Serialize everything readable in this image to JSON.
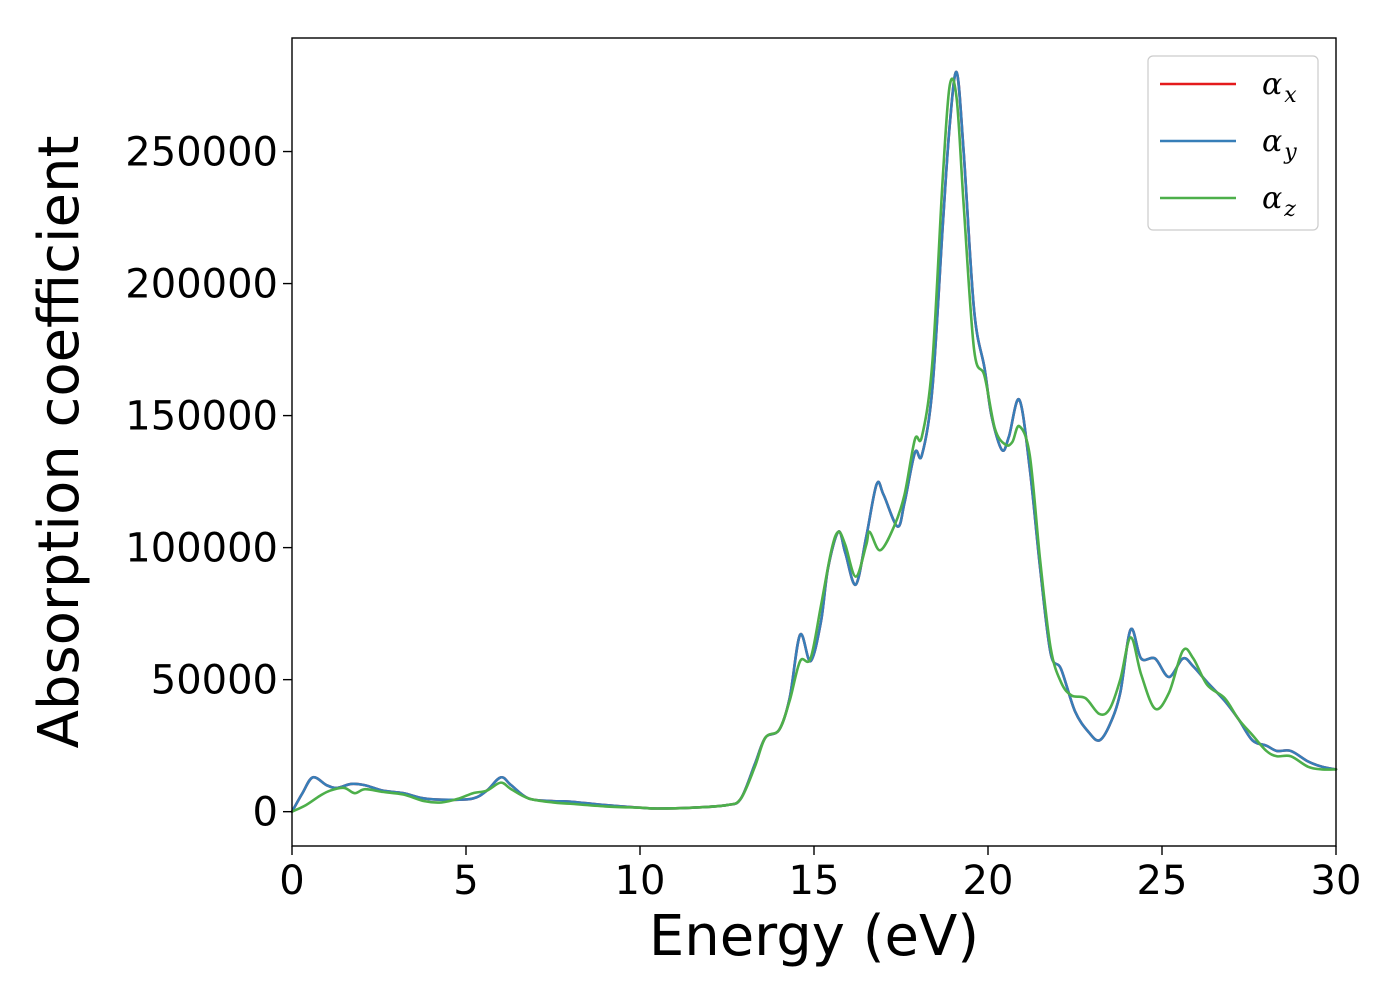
{
  "chart_data": {
    "type": "line",
    "xlabel": "Energy (eV)",
    "ylabel": "Absorption coefficient",
    "xlim": [
      0,
      30
    ],
    "ylim": [
      -13000,
      293000
    ],
    "xticks": [
      0,
      5,
      10,
      15,
      20,
      25,
      30
    ],
    "xtick_labels": [
      "0",
      "5",
      "10",
      "15",
      "20",
      "25",
      "30"
    ],
    "yticks": [
      0,
      50000,
      100000,
      150000,
      200000,
      250000
    ],
    "ytick_labels": [
      "0",
      "50000",
      "100000",
      "150000",
      "200000",
      "250000"
    ],
    "grid": false,
    "legend_position": "top-right",
    "series": [
      {
        "name": "α",
        "subscript": "x",
        "color": "#e41a1c",
        "points": [
          [
            0,
            0
          ],
          [
            0.3,
            7000
          ],
          [
            0.6,
            13000
          ],
          [
            1.0,
            10000
          ],
          [
            1.3,
            9000
          ],
          [
            1.7,
            10500
          ],
          [
            2.1,
            10000
          ],
          [
            2.6,
            8000
          ],
          [
            3.2,
            7000
          ],
          [
            3.8,
            5000
          ],
          [
            4.5,
            4500
          ],
          [
            5.2,
            5000
          ],
          [
            5.6,
            8000
          ],
          [
            6.0,
            13000
          ],
          [
            6.3,
            10000
          ],
          [
            6.8,
            5000
          ],
          [
            7.5,
            4000
          ],
          [
            8.0,
            3800
          ],
          [
            9.0,
            2500
          ],
          [
            10.0,
            1500
          ],
          [
            10.5,
            1200
          ],
          [
            11.5,
            1500
          ],
          [
            12.5,
            2500
          ],
          [
            12.9,
            5000
          ],
          [
            13.3,
            18000
          ],
          [
            13.6,
            28000
          ],
          [
            14.0,
            31000
          ],
          [
            14.3,
            43000
          ],
          [
            14.6,
            67000
          ],
          [
            14.9,
            57000
          ],
          [
            15.2,
            72000
          ],
          [
            15.4,
            92000
          ],
          [
            15.7,
            106000
          ],
          [
            15.9,
            98000
          ],
          [
            16.2,
            86000
          ],
          [
            16.5,
            104000
          ],
          [
            16.8,
            124000
          ],
          [
            17.0,
            120000
          ],
          [
            17.4,
            108000
          ],
          [
            17.6,
            117000
          ],
          [
            17.9,
            136000
          ],
          [
            18.1,
            135000
          ],
          [
            18.4,
            160000
          ],
          [
            18.7,
            222000
          ],
          [
            18.9,
            260000
          ],
          [
            19.1,
            280000
          ],
          [
            19.3,
            250000
          ],
          [
            19.6,
            190000
          ],
          [
            19.9,
            168000
          ],
          [
            20.1,
            150000
          ],
          [
            20.4,
            137000
          ],
          [
            20.6,
            142000
          ],
          [
            20.9,
            156000
          ],
          [
            21.2,
            130000
          ],
          [
            21.5,
            92000
          ],
          [
            21.8,
            60000
          ],
          [
            22.1,
            54000
          ],
          [
            22.5,
            38000
          ],
          [
            22.9,
            30000
          ],
          [
            23.2,
            27000
          ],
          [
            23.5,
            33000
          ],
          [
            23.8,
            45000
          ],
          [
            24.1,
            69000
          ],
          [
            24.4,
            58000
          ],
          [
            24.8,
            58000
          ],
          [
            25.2,
            51000
          ],
          [
            25.6,
            58000
          ],
          [
            25.9,
            55000
          ],
          [
            26.3,
            49000
          ],
          [
            26.8,
            42000
          ],
          [
            27.2,
            35000
          ],
          [
            27.6,
            27000
          ],
          [
            28.0,
            25000
          ],
          [
            28.3,
            23000
          ],
          [
            28.7,
            23000
          ],
          [
            29.2,
            19000
          ],
          [
            29.6,
            17000
          ],
          [
            30.0,
            16000
          ]
        ]
      },
      {
        "name": "α",
        "subscript": "y",
        "color": "#377eb8",
        "points": [
          [
            0,
            0
          ],
          [
            0.3,
            7000
          ],
          [
            0.6,
            13000
          ],
          [
            1.0,
            10000
          ],
          [
            1.3,
            9000
          ],
          [
            1.7,
            10500
          ],
          [
            2.1,
            10000
          ],
          [
            2.6,
            8000
          ],
          [
            3.2,
            7000
          ],
          [
            3.8,
            5000
          ],
          [
            4.5,
            4500
          ],
          [
            5.2,
            5000
          ],
          [
            5.6,
            8000
          ],
          [
            6.0,
            13000
          ],
          [
            6.3,
            10000
          ],
          [
            6.8,
            5000
          ],
          [
            7.5,
            4000
          ],
          [
            8.0,
            3800
          ],
          [
            9.0,
            2500
          ],
          [
            10.0,
            1500
          ],
          [
            10.5,
            1200
          ],
          [
            11.5,
            1500
          ],
          [
            12.5,
            2500
          ],
          [
            12.9,
            5000
          ],
          [
            13.3,
            18000
          ],
          [
            13.6,
            28000
          ],
          [
            14.0,
            31000
          ],
          [
            14.3,
            43000
          ],
          [
            14.6,
            67000
          ],
          [
            14.9,
            57000
          ],
          [
            15.2,
            72000
          ],
          [
            15.4,
            92000
          ],
          [
            15.7,
            106000
          ],
          [
            15.9,
            98000
          ],
          [
            16.2,
            86000
          ],
          [
            16.5,
            104000
          ],
          [
            16.8,
            124000
          ],
          [
            17.0,
            120000
          ],
          [
            17.4,
            108000
          ],
          [
            17.6,
            117000
          ],
          [
            17.9,
            136000
          ],
          [
            18.1,
            135000
          ],
          [
            18.4,
            160000
          ],
          [
            18.7,
            222000
          ],
          [
            18.9,
            260000
          ],
          [
            19.1,
            280000
          ],
          [
            19.3,
            250000
          ],
          [
            19.6,
            190000
          ],
          [
            19.9,
            168000
          ],
          [
            20.1,
            150000
          ],
          [
            20.4,
            137000
          ],
          [
            20.6,
            142000
          ],
          [
            20.9,
            156000
          ],
          [
            21.2,
            130000
          ],
          [
            21.5,
            92000
          ],
          [
            21.8,
            60000
          ],
          [
            22.1,
            54000
          ],
          [
            22.5,
            38000
          ],
          [
            22.9,
            30000
          ],
          [
            23.2,
            27000
          ],
          [
            23.5,
            33000
          ],
          [
            23.8,
            45000
          ],
          [
            24.1,
            69000
          ],
          [
            24.4,
            58000
          ],
          [
            24.8,
            58000
          ],
          [
            25.2,
            51000
          ],
          [
            25.6,
            58000
          ],
          [
            25.9,
            55000
          ],
          [
            26.3,
            49000
          ],
          [
            26.8,
            42000
          ],
          [
            27.2,
            35000
          ],
          [
            27.6,
            27000
          ],
          [
            28.0,
            25000
          ],
          [
            28.3,
            23000
          ],
          [
            28.7,
            23000
          ],
          [
            29.2,
            19000
          ],
          [
            29.6,
            17000
          ],
          [
            30.0,
            16000
          ]
        ]
      },
      {
        "name": "α",
        "subscript": "z",
        "color": "#4daf4a",
        "points": [
          [
            0,
            0
          ],
          [
            0.4,
            2500
          ],
          [
            0.8,
            6000
          ],
          [
            1.1,
            8000
          ],
          [
            1.5,
            9000
          ],
          [
            1.8,
            7000
          ],
          [
            2.1,
            8500
          ],
          [
            2.6,
            7500
          ],
          [
            3.2,
            6500
          ],
          [
            3.8,
            4000
          ],
          [
            4.3,
            3500
          ],
          [
            4.8,
            5000
          ],
          [
            5.2,
            7000
          ],
          [
            5.6,
            8000
          ],
          [
            6.0,
            11000
          ],
          [
            6.3,
            8500
          ],
          [
            6.8,
            5000
          ],
          [
            7.5,
            3500
          ],
          [
            8.0,
            3000
          ],
          [
            9.0,
            2000
          ],
          [
            10.0,
            1500
          ],
          [
            10.5,
            1200
          ],
          [
            11.5,
            1500
          ],
          [
            12.5,
            2500
          ],
          [
            12.9,
            5000
          ],
          [
            13.3,
            17000
          ],
          [
            13.6,
            28000
          ],
          [
            14.0,
            31000
          ],
          [
            14.3,
            42000
          ],
          [
            14.6,
            57000
          ],
          [
            14.9,
            58000
          ],
          [
            15.2,
            78000
          ],
          [
            15.5,
            99000
          ],
          [
            15.7,
            106000
          ],
          [
            15.9,
            101000
          ],
          [
            16.2,
            89000
          ],
          [
            16.5,
            101000
          ],
          [
            16.6,
            106000
          ],
          [
            16.9,
            99000
          ],
          [
            17.3,
            108000
          ],
          [
            17.6,
            120000
          ],
          [
            17.9,
            141000
          ],
          [
            18.1,
            142000
          ],
          [
            18.4,
            170000
          ],
          [
            18.7,
            240000
          ],
          [
            18.9,
            275000
          ],
          [
            19.1,
            270000
          ],
          [
            19.3,
            230000
          ],
          [
            19.6,
            175000
          ],
          [
            19.9,
            165000
          ],
          [
            20.2,
            145000
          ],
          [
            20.5,
            139000
          ],
          [
            20.7,
            140000
          ],
          [
            20.9,
            146000
          ],
          [
            21.2,
            135000
          ],
          [
            21.5,
            95000
          ],
          [
            21.8,
            62000
          ],
          [
            22.1,
            49000
          ],
          [
            22.4,
            44000
          ],
          [
            22.8,
            43000
          ],
          [
            23.2,
            37000
          ],
          [
            23.5,
            39000
          ],
          [
            23.8,
            50000
          ],
          [
            24.1,
            66000
          ],
          [
            24.4,
            52000
          ],
          [
            24.8,
            39000
          ],
          [
            25.2,
            45000
          ],
          [
            25.6,
            61000
          ],
          [
            25.9,
            58000
          ],
          [
            26.3,
            48000
          ],
          [
            26.8,
            43000
          ],
          [
            27.2,
            35000
          ],
          [
            27.6,
            29000
          ],
          [
            28.0,
            23000
          ],
          [
            28.3,
            21000
          ],
          [
            28.7,
            21000
          ],
          [
            29.2,
            17000
          ],
          [
            29.6,
            16000
          ],
          [
            30.0,
            16000
          ]
        ]
      }
    ]
  }
}
